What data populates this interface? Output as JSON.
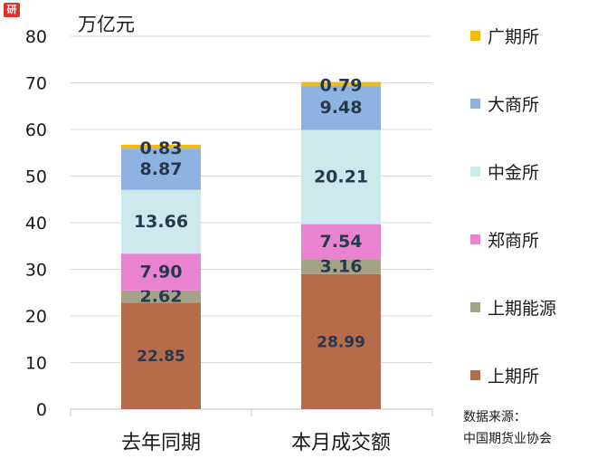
{
  "logo_text": "研",
  "chart_data": {
    "type": "bar",
    "stacked": true,
    "unit_label": "万亿元",
    "categories": [
      "去年同期",
      "本月成交额"
    ],
    "ylim": [
      0,
      80
    ],
    "yticks": [
      0,
      10,
      20,
      30,
      40,
      50,
      60,
      70,
      80
    ],
    "grid": true,
    "legend_position": "right",
    "series": [
      {
        "name": "上期所",
        "color": "#b66c4b",
        "values": [
          22.85,
          28.99
        ],
        "labels": [
          "22.85",
          "28.99"
        ]
      },
      {
        "name": "上期能源",
        "color": "#a5a387",
        "values": [
          2.62,
          3.16
        ],
        "labels": [
          "2.62",
          "3.16"
        ]
      },
      {
        "name": "郑商所",
        "color": "#ea82d2",
        "values": [
          7.9,
          7.54
        ],
        "labels": [
          "7.90",
          "7.54"
        ]
      },
      {
        "name": "中金所",
        "color": "#cce9ec",
        "values": [
          13.66,
          20.21
        ],
        "labels": [
          "13.66",
          "20.21"
        ]
      },
      {
        "name": "大商所",
        "color": "#8fb3e1",
        "values": [
          8.87,
          9.48
        ],
        "labels": [
          "8.87",
          "9.48"
        ]
      },
      {
        "name": "广期所",
        "color": "#f3b90c",
        "values": [
          0.83,
          0.79
        ],
        "labels": [
          "0.83",
          "0.79"
        ]
      }
    ]
  },
  "source_line1": "数据来源：",
  "source_line2": "中国期货业协会"
}
